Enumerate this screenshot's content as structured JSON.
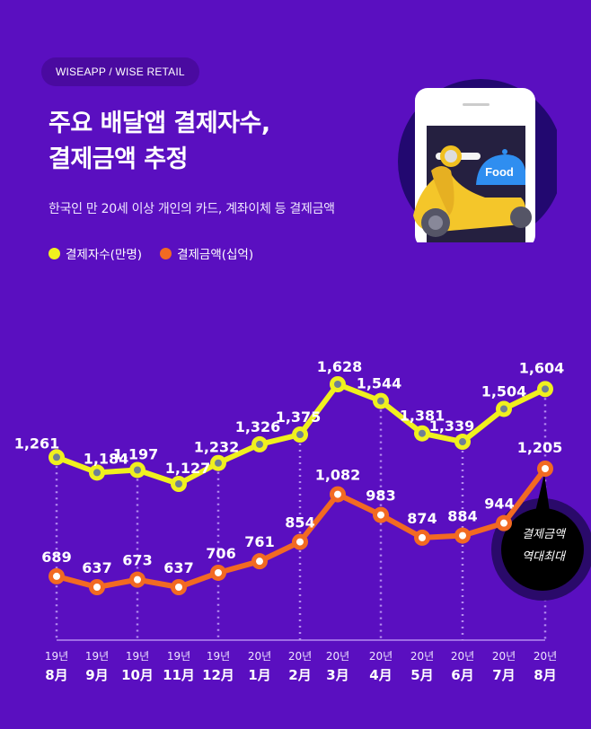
{
  "header": {
    "badge": "WISEAPP / WISE RETAIL",
    "title_line1": "주요 배달앱 결제자수,",
    "title_line2": "결제금액 추정",
    "subtitle": "한국인 만 20세 이상 개인의 카드, 계좌이체 등 결제금액",
    "illustration": {
      "icon": "phone-scooter-food-icon",
      "dome_label": "Food"
    }
  },
  "legend": [
    {
      "label": "결제자수(만명)",
      "color": "#f0f01e"
    },
    {
      "label": "결제금액(십억)",
      "color": "#f26a22"
    }
  ],
  "callout": {
    "line1": "결제금액",
    "line2": "역대최대"
  },
  "colors": {
    "background": "#5a0fc0",
    "yellow": "#f0f01e",
    "orange": "#f26a22",
    "gridline": "#b48cf0"
  },
  "chart_data": {
    "type": "line",
    "title": "주요 배달앱 결제자수, 결제금액 추정",
    "subtitle": "한국인 만 20세 이상 개인의 카드, 계좌이체 등 결제금액",
    "categories": [
      "19년 8月",
      "19년 9月",
      "19년 10月",
      "19년 11月",
      "19년 12月",
      "20년 1月",
      "20년 2月",
      "20년 3月",
      "20년 4月",
      "20년 5月",
      "20년 6月",
      "20년 7月",
      "20년 8月"
    ],
    "x_years": [
      "19년",
      "19년",
      "19년",
      "19년",
      "19년",
      "20년",
      "20년",
      "20년",
      "20년",
      "20년",
      "20년",
      "20년",
      "20년"
    ],
    "x_months": [
      "8月",
      "9月",
      "10月",
      "11月",
      "12月",
      "1月",
      "2月",
      "3月",
      "4月",
      "5月",
      "6月",
      "7月",
      "8月"
    ],
    "series": [
      {
        "name": "결제자수(만명)",
        "values": [
          1261,
          1184,
          1197,
          1127,
          1232,
          1326,
          1375,
          1628,
          1544,
          1381,
          1339,
          1504,
          1604
        ],
        "labels": [
          "1,261",
          "1,184",
          "1,197",
          "1,127",
          "1,232",
          "1,326",
          "1,375",
          "1,628",
          "1,544",
          "1,381",
          "1,339",
          "1,504",
          "1,604"
        ]
      },
      {
        "name": "결제금액(십억)",
        "values": [
          689,
          637,
          673,
          637,
          706,
          761,
          854,
          1082,
          983,
          874,
          884,
          944,
          1205
        ],
        "labels": [
          "689",
          "637",
          "673",
          "637",
          "706",
          "761",
          "854",
          "1,082",
          "983",
          "874",
          "884",
          "944",
          "1,205"
        ]
      }
    ],
    "xlabel": "",
    "ylabel": "",
    "grid": false,
    "legend_position": "top-left",
    "annotations": [
      "결제금액 역대최대"
    ]
  }
}
